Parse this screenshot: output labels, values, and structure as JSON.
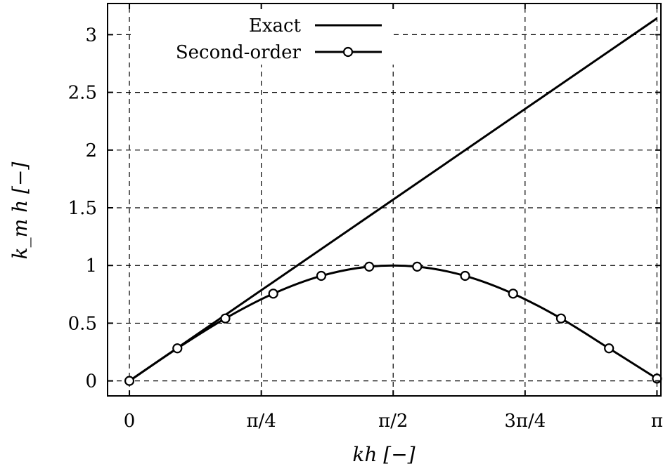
{
  "chart_data": {
    "type": "line",
    "title": "",
    "xlabel": "kh [−]",
    "ylabel": "k_m h [−]",
    "xlim": [
      -0.13,
      3.165
    ],
    "ylim": [
      -0.13,
      3.27
    ],
    "x_ticks": [
      {
        "value": 0,
        "label": "0"
      },
      {
        "value": 0.7854,
        "label": "π/4"
      },
      {
        "value": 1.5708,
        "label": "π/2"
      },
      {
        "value": 2.3562,
        "label": "3π/4"
      },
      {
        "value": 3.1416,
        "label": "π"
      }
    ],
    "y_ticks": [
      {
        "value": 0,
        "label": "0"
      },
      {
        "value": 0.5,
        "label": "0.5"
      },
      {
        "value": 1,
        "label": "1"
      },
      {
        "value": 1.5,
        "label": "1.5"
      },
      {
        "value": 2,
        "label": "2"
      },
      {
        "value": 2.5,
        "label": "2.5"
      },
      {
        "value": 3,
        "label": "3"
      }
    ],
    "grid": true,
    "legend_position": "top",
    "series": [
      {
        "name": "Exact",
        "style": "line",
        "x": [
          0,
          3.1416
        ],
        "y": [
          0,
          3.1416
        ]
      },
      {
        "name": "Second-order",
        "style": "line-with-markers",
        "x": [
          0,
          0.2856,
          0.5712,
          0.8568,
          1.1424,
          1.428,
          1.7136,
          1.9992,
          2.2848,
          2.5704,
          2.856,
          3.1416
        ],
        "y": [
          0,
          0.282,
          0.541,
          0.756,
          0.91,
          0.99,
          0.99,
          0.91,
          0.756,
          0.541,
          0.282,
          0.02
        ]
      }
    ]
  }
}
